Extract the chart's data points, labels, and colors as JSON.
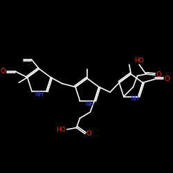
{
  "background": "#000000",
  "bond_color": "#ffffff",
  "N_color": "#4040ff",
  "O_color": "#ff2200",
  "bond_width": 1.2,
  "figsize": [
    2.5,
    2.5
  ],
  "dpi": 100,
  "xlim": [
    0,
    10
  ],
  "ylim": [
    0,
    10
  ]
}
